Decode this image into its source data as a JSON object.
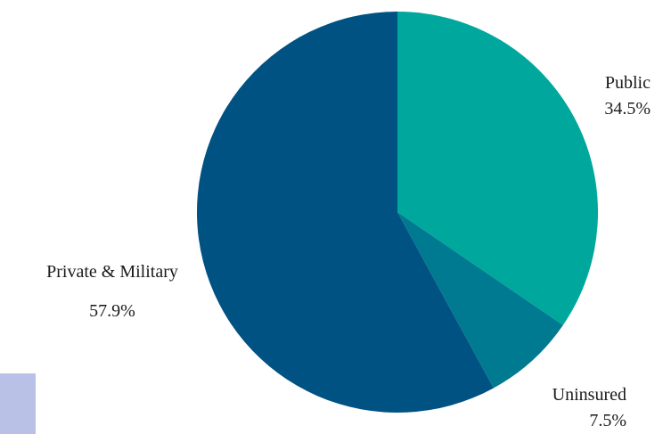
{
  "chart_data": {
    "type": "pie",
    "title": "",
    "slices": [
      {
        "label": "Public",
        "value": 34.5,
        "display": "34.5%",
        "color": "#00a79d"
      },
      {
        "label": "Uninsured",
        "value": 7.5,
        "display": "7.5%",
        "color": "#007a91"
      },
      {
        "label": "Private & Military",
        "value": 57.9,
        "display": "57.9%",
        "color": "#005283"
      }
    ],
    "start": "12 o'clock",
    "direction": "clockwise",
    "legend": "none"
  },
  "decor": {
    "corner_box_color": "#b9c2e6"
  }
}
